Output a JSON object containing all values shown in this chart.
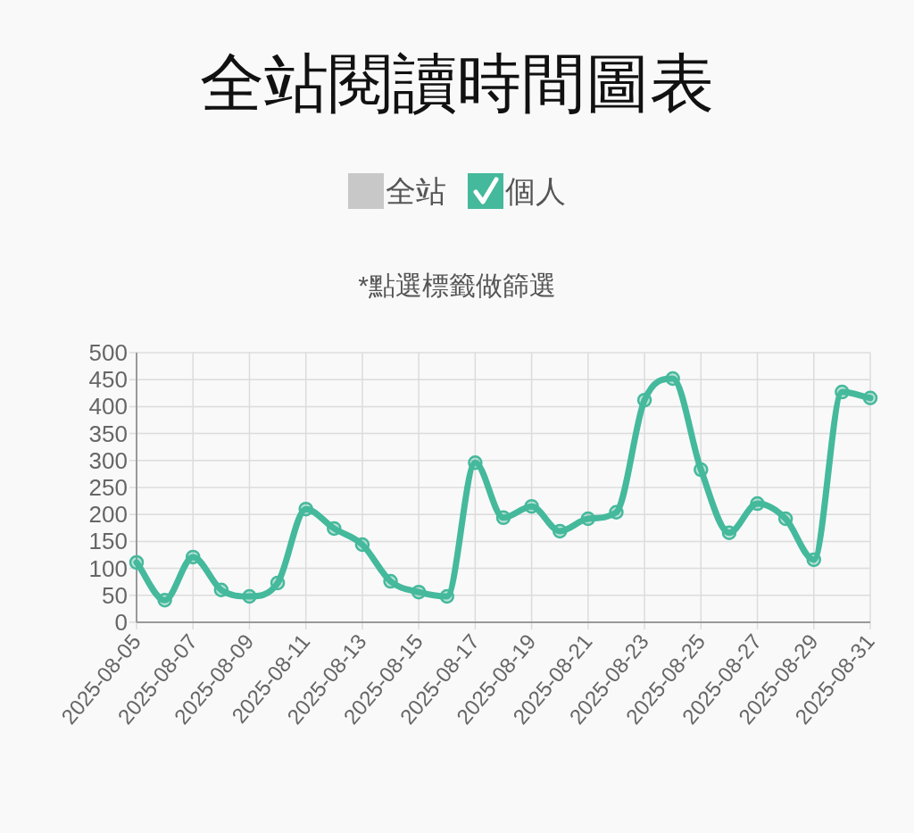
{
  "chart_data": {
    "type": "line",
    "title": "全站閱讀時間圖表",
    "subtitle": "*點選標籤做篩選",
    "categories": [
      "2025-08-05",
      null,
      "2025-08-07",
      null,
      "2025-08-09",
      null,
      "2025-08-11",
      null,
      "2025-08-13",
      null,
      "2025-08-15",
      null,
      "2025-08-17",
      null,
      "2025-08-19",
      null,
      "2025-08-21",
      null,
      "2025-08-23",
      null,
      "2025-08-25",
      null,
      "2025-08-27",
      null,
      "2025-08-29",
      null,
      "2025-08-31"
    ],
    "series": [
      {
        "name": "全站",
        "color": "#c8c8c8",
        "values": [
          null,
          null,
          null,
          null,
          null,
          null,
          null,
          null,
          null,
          null,
          null,
          null,
          null,
          null,
          null,
          null,
          null,
          null,
          null,
          null,
          null,
          null,
          null,
          null,
          null,
          null,
          null
        ]
      },
      {
        "name": "個人",
        "color": "#45b99c",
        "values": [
          111,
          41,
          121,
          60,
          48,
          73,
          210,
          174,
          144,
          76,
          56,
          48,
          296,
          194,
          215,
          169,
          192,
          204,
          412,
          452,
          283,
          166,
          220,
          192,
          116,
          427,
          416
        ]
      }
    ],
    "ylim": [
      0,
      500
    ],
    "yticks": [
      0,
      50,
      100,
      150,
      200,
      250,
      300,
      350,
      400,
      450,
      500
    ],
    "grid": true,
    "legend": "top",
    "marker": "circle",
    "line_style": "solid"
  }
}
